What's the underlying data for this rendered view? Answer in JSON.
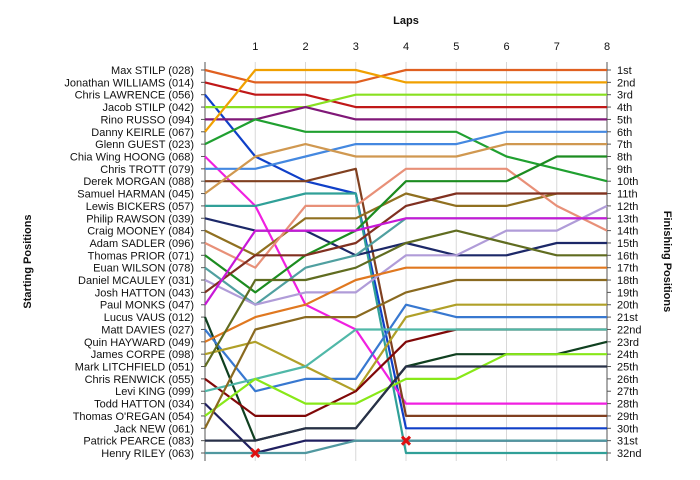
{
  "chart_data": {
    "type": "line",
    "subtype": "lap chart (position by lap)",
    "title": "Laps",
    "ylabel_left": "Starting Positions",
    "ylabel_right": "Finishing Positions",
    "x": [
      1,
      2,
      3,
      4,
      5,
      6,
      7,
      8
    ],
    "xlim": [
      0,
      8
    ],
    "ylim": [
      1,
      32
    ],
    "y_inverted": true,
    "grid": "vertical lines at each lap",
    "legend": "none (driver names on left axis, finishing positions on right axis)",
    "drivers": [
      "Max STILP (028)",
      "Jonathan WILLIAMS (014)",
      "Chris LAWRENCE (056)",
      "Jacob STILP (042)",
      "Rino RUSSO (094)",
      "Danny KEIRLE (067)",
      "Glenn GUEST (023)",
      "Chia Wing HOONG (068)",
      "Chris TROTT (079)",
      "Derek MORGAN (088)",
      "Samuel HARMAN (045)",
      "Lewis BICKERS (057)",
      "Philip RAWSON (039)",
      "Craig MOONEY (084)",
      "Adam SADLER (096)",
      "Thomas PRIOR (071)",
      "Euan WILSON (078)",
      "Daniel MCAULEY (031)",
      "Josh HATTON (043)",
      "Paul MONKS (047)",
      "Lucus VAUS (012)",
      "Matt DAVIES (027)",
      "Quin HAYWARD (049)",
      "James CORPE (098)",
      "Mark LITCHFIELD (051)",
      "Chris RENWICK (055)",
      "Levi KING (099)",
      "Todd HATTON (034)",
      "Thomas O'REGAN (054)",
      "Jack NEW (061)",
      "Patrick PEARCE (083)",
      "Henry RILEY (063)"
    ],
    "finishing_labels": [
      "1st",
      "2nd",
      "3rd",
      "4th",
      "5th",
      "6th",
      "7th",
      "8th",
      "9th",
      "10th",
      "11th",
      "12th",
      "13th",
      "14th",
      "15th",
      "16th",
      "17th",
      "18th",
      "19th",
      "20th",
      "21st",
      "22nd",
      "23rd",
      "24th",
      "25th",
      "26th",
      "27th",
      "28th",
      "29th",
      "30th",
      "31st",
      "32nd"
    ],
    "series": [
      {
        "start": 1,
        "color": "#e06020",
        "laps": [
          2,
          2,
          2,
          1,
          1,
          1,
          1,
          1
        ]
      },
      {
        "start": 2,
        "color": "#c01818",
        "laps": [
          3,
          3,
          4,
          4,
          4,
          4,
          4,
          4
        ]
      },
      {
        "start": 3,
        "color": "#1040c8",
        "laps": [
          8,
          10,
          11,
          30,
          30,
          30,
          30,
          30
        ]
      },
      {
        "start": 4,
        "color": "#88e020",
        "laps": [
          4,
          4,
          3,
          3,
          3,
          3,
          3,
          3
        ]
      },
      {
        "start": 5,
        "color": "#801878",
        "laps": [
          5,
          4,
          5,
          5,
          5,
          5,
          5,
          5
        ]
      },
      {
        "start": 6,
        "color": "#f0a000",
        "laps": [
          1,
          1,
          1,
          2,
          2,
          2,
          2,
          2
        ]
      },
      {
        "start": 7,
        "color": "#20a030",
        "laps": [
          5,
          6,
          6,
          6,
          6,
          8,
          9,
          10
        ]
      },
      {
        "start": 8,
        "color": "#f020e0",
        "laps": [
          12,
          20,
          22,
          28,
          28,
          28,
          28,
          28
        ]
      },
      {
        "start": 9,
        "color": "#4488e0",
        "laps": [
          9,
          8,
          7,
          7,
          7,
          6,
          6,
          6
        ]
      },
      {
        "start": 10,
        "color": "#804020",
        "laps": [
          10,
          10,
          9,
          29,
          29,
          29,
          29,
          29
        ]
      },
      {
        "start": 11,
        "color": "#d09850",
        "laps": [
          8,
          7,
          8,
          8,
          8,
          7,
          7,
          7
        ]
      },
      {
        "start": 12,
        "color": "#30a098",
        "laps": [
          12,
          11,
          11,
          32,
          32,
          32,
          32,
          32
        ]
      },
      {
        "start": 13,
        "color": "#1c2868",
        "laps": [
          14,
          14,
          16,
          15,
          16,
          16,
          15,
          15
        ]
      },
      {
        "start": 14,
        "color": "#907020",
        "laps": [
          16,
          13,
          13,
          11,
          12,
          12,
          11,
          11
        ]
      },
      {
        "start": 15,
        "color": "#e89078",
        "laps": [
          17,
          12,
          12,
          9,
          9,
          9,
          12,
          14
        ]
      },
      {
        "start": 16,
        "color": "#1c8c20",
        "laps": [
          19,
          16,
          14,
          10,
          10,
          10,
          8,
          8
        ]
      },
      {
        "start": 17,
        "color": "#50a0a0",
        "laps": [
          20,
          17,
          16,
          13,
          13,
          13,
          13,
          13
        ]
      },
      {
        "start": 18,
        "color": "#b09cd8",
        "laps": [
          20,
          19,
          19,
          16,
          16,
          14,
          14,
          12
        ]
      },
      {
        "start": 19,
        "color": "#803020",
        "laps": [
          16,
          16,
          15,
          12,
          11,
          11,
          11,
          11
        ]
      },
      {
        "start": 20,
        "color": "#c818d8",
        "laps": [
          14,
          14,
          14,
          13,
          13,
          13,
          13,
          13
        ]
      },
      {
        "start": 21,
        "color": "#104020",
        "laps": [
          31,
          30,
          30,
          25,
          24,
          24,
          24,
          23
        ]
      },
      {
        "start": 22,
        "color": "#3878d0",
        "laps": [
          27,
          26,
          26,
          20,
          21,
          21,
          21,
          21
        ]
      },
      {
        "start": 23,
        "color": "#e07820",
        "laps": [
          21,
          20,
          18,
          17,
          17,
          17,
          17,
          17
        ]
      },
      {
        "start": 24,
        "color": "#b0a028",
        "laps": [
          23,
          25,
          27,
          21,
          20,
          20,
          20,
          20
        ]
      },
      {
        "start": 25,
        "color": "#606c20",
        "laps": [
          18,
          18,
          17,
          15,
          14,
          15,
          16,
          16
        ]
      },
      {
        "start": 26,
        "color": "#800808",
        "laps": [
          29,
          29,
          27,
          23,
          22,
          22,
          22,
          22
        ]
      },
      {
        "start": 27,
        "color": "#50b8a8",
        "laps": [
          26,
          25,
          22,
          22,
          22,
          22,
          22,
          22
        ]
      },
      {
        "start": 28,
        "color": "#202060",
        "laps": [
          32,
          31,
          31,
          31,
          31,
          31,
          31,
          31
        ]
      },
      {
        "start": 29,
        "color": "#88e818",
        "laps": [
          26,
          28,
          28,
          26,
          26,
          24,
          24,
          24
        ]
      },
      {
        "start": 30,
        "color": "#8a6a20",
        "laps": [
          22,
          21,
          21,
          19,
          18,
          18,
          18,
          18
        ]
      },
      {
        "start": 31,
        "color": "#283048",
        "laps": [
          31,
          30,
          30,
          25,
          25,
          25,
          25,
          25
        ]
      },
      {
        "start": 32,
        "color": "#5098a0",
        "laps": [
          32,
          32,
          31,
          31,
          31,
          31,
          31,
          31
        ]
      }
    ],
    "markers": [
      {
        "lap": 1,
        "position": 32,
        "symbol": "x",
        "color": "#dd1010"
      },
      {
        "lap": 4,
        "position": 31,
        "symbol": "x",
        "color": "#dd1010"
      }
    ]
  }
}
